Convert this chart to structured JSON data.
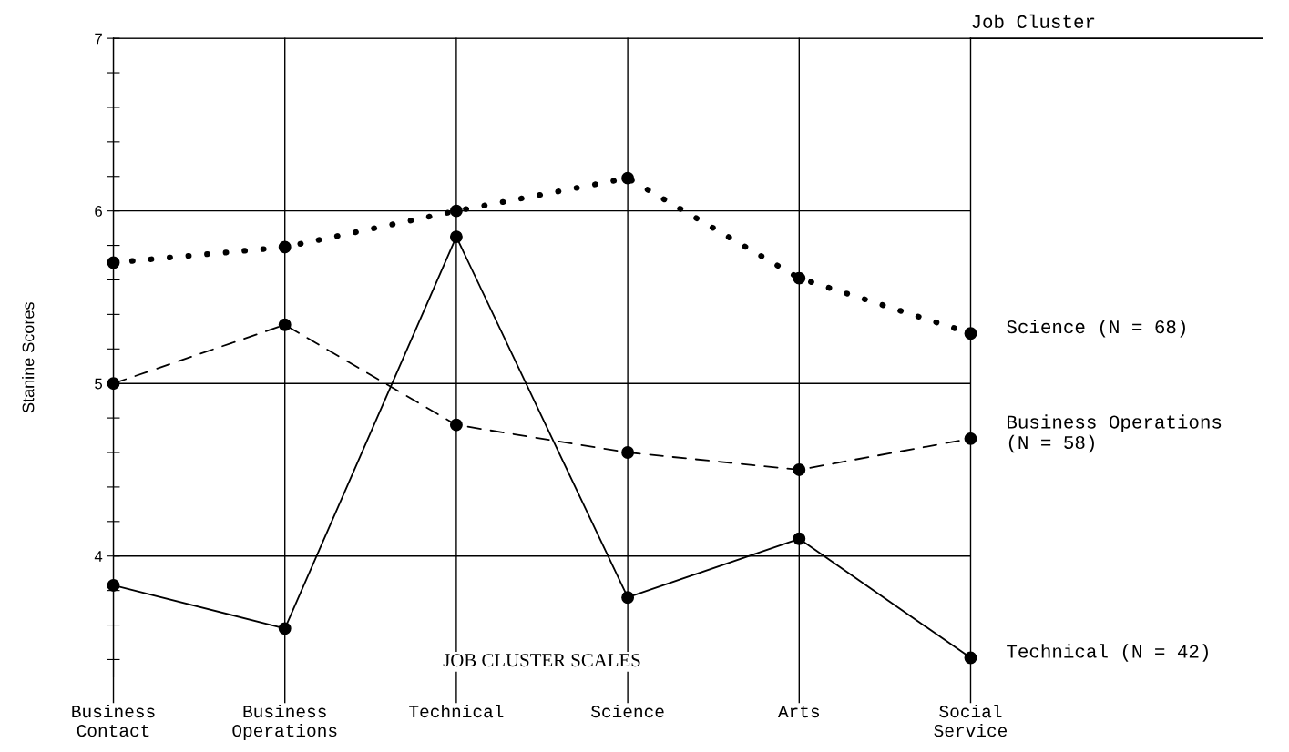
{
  "chart_data": {
    "type": "line",
    "ylabel": "Stanine Scores",
    "legend_title": "Job Cluster",
    "categories": [
      "Business\nContact",
      "Business\nOperations",
      "Technical",
      "Science",
      "Arts",
      "Social\nService"
    ],
    "series": [
      {
        "name": "Science (N = 68)",
        "color": "#000000",
        "line_style": "dotted",
        "values": [
          5.7,
          5.79,
          6.0,
          6.19,
          5.61,
          5.29
        ]
      },
      {
        "name": "Business Operations\n(N = 58)",
        "color": "#000000",
        "line_style": "dashed",
        "values": [
          5.0,
          5.34,
          4.76,
          4.6,
          4.5,
          4.68
        ]
      },
      {
        "name": "Technical (N = 42)",
        "color": "#000000",
        "line_style": "solid",
        "values": [
          3.83,
          3.58,
          5.85,
          3.76,
          4.1,
          3.41
        ]
      }
    ],
    "marker": "circle",
    "ylim": [
      3.3,
      7
    ],
    "yticks": [
      {
        "value": 3.4,
        "label": null
      },
      {
        "value": 3.6,
        "label": null
      },
      {
        "value": 3.8,
        "label": null
      },
      4,
      {
        "value": 4.2,
        "label": null
      },
      {
        "value": 4.4,
        "label": null
      },
      {
        "value": 4.6,
        "label": null
      },
      {
        "value": 4.8,
        "label": null
      },
      5,
      {
        "value": 5.2,
        "label": null
      },
      {
        "value": 5.4,
        "label": null
      },
      {
        "value": 5.6,
        "label": null
      },
      {
        "value": 5.8,
        "label": null
      },
      6,
      {
        "value": 6.2,
        "label": null
      },
      {
        "value": 6.4,
        "label": null
      },
      {
        "value": 6.6,
        "label": null
      },
      {
        "value": 6.8,
        "label": null
      },
      7
    ],
    "grid": true,
    "annotations": [
      "JOB CLUSTER SCALES"
    ]
  }
}
